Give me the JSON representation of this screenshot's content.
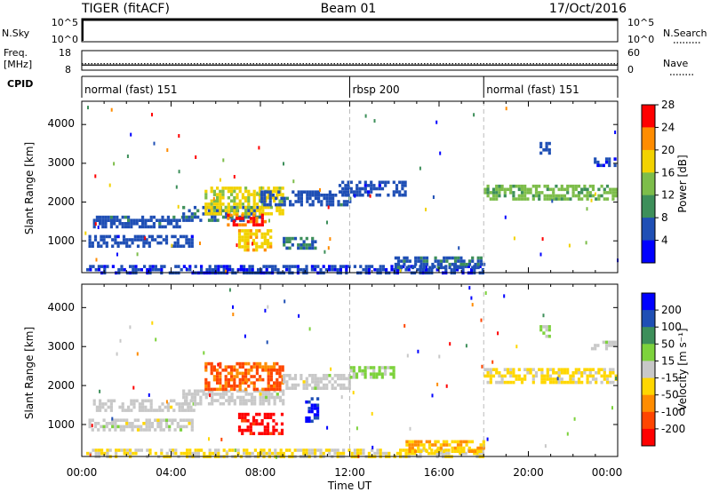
{
  "header": {
    "radar": "TIGER (fitACF)",
    "beam": "Beam 01",
    "date": "17/Oct/2016"
  },
  "nsky_panel": {
    "left_label": "N.Sky",
    "right_label": "N.Search",
    "left_ticks": [
      "10^5",
      "10^0"
    ],
    "right_ticks": [
      "10^5",
      "10^0"
    ]
  },
  "freq_panel": {
    "left_label_1": "Freq.",
    "left_label_2": "[MHz]",
    "right_label": "Nave",
    "left_ticks": [
      "18",
      "8"
    ],
    "right_ticks": [
      "60",
      "0"
    ],
    "freq_level": 10.6,
    "nave_level": 20
  },
  "cpid": {
    "label": "CPID",
    "segments": [
      {
        "start_h": 0,
        "end_h": 12,
        "label": "normal (fast) 151"
      },
      {
        "start_h": 12,
        "end_h": 18,
        "label": "rbsp 200"
      },
      {
        "start_h": 18,
        "end_h": 24,
        "label": "normal (fast) 151"
      }
    ]
  },
  "axes": {
    "ylabel": "Slant Range [km]",
    "xlabel": "Time UT",
    "y_ticks": [
      "1000",
      "2000",
      "3000",
      "4000"
    ],
    "x_ticks": [
      "00:00",
      "04:00",
      "08:00",
      "12:00",
      "16:00",
      "20:00",
      "00:00"
    ]
  },
  "colorbars": {
    "power": {
      "label": "Power [dB]",
      "ticks": [
        "4",
        "8",
        "12",
        "16",
        "20",
        "24",
        "28"
      ],
      "colors": [
        "#0000ff",
        "#1f4fb5",
        "#3d8f5a",
        "#7dbd4a",
        "#f2d200",
        "#ff8c00",
        "#ff0000"
      ]
    },
    "velocity": {
      "label": "Velocity [m s⁻¹]",
      "ticks": [
        "200",
        "100",
        "50",
        "15",
        "-15",
        "-50",
        "-100",
        "-200"
      ],
      "colors": [
        "#0000ff",
        "#1f4fb5",
        "#3d8f5a",
        "#7dd23c",
        "#c8c8c8",
        "#ffd700",
        "#ff8c00",
        "#ff4500",
        "#ff0000"
      ]
    }
  },
  "chart_data": [
    {
      "type": "heatmap",
      "title": "Power",
      "xlabel": "Time UT",
      "ylabel": "Slant Range [km]",
      "xlim": [
        0,
        24
      ],
      "ylim": [
        180,
        4600
      ],
      "value_label": "Power [dB]",
      "vlim": [
        0,
        30
      ],
      "regions": [
        {
          "t0": 0.2,
          "t1": 18.0,
          "r0": 200,
          "r1": 380,
          "v": 5
        },
        {
          "t0": 0.3,
          "t1": 5.0,
          "r0": 900,
          "r1": 1150,
          "v": 6
        },
        {
          "t0": 0.5,
          "t1": 4.5,
          "r0": 1350,
          "r1": 1650,
          "v": 7
        },
        {
          "t0": 4.5,
          "t1": 8.0,
          "r0": 1550,
          "r1": 1900,
          "v": 8
        },
        {
          "t0": 5.5,
          "t1": 9.0,
          "r0": 1700,
          "r1": 2400,
          "v": 18
        },
        {
          "t0": 6.5,
          "t1": 8.2,
          "r0": 1450,
          "r1": 1700,
          "v": 26
        },
        {
          "t0": 7.0,
          "t1": 8.5,
          "r0": 800,
          "r1": 1300,
          "v": 20
        },
        {
          "t0": 8.0,
          "t1": 12.0,
          "r0": 1900,
          "r1": 2300,
          "v": 7
        },
        {
          "t0": 9.0,
          "t1": 10.5,
          "r0": 800,
          "r1": 1100,
          "v": 9
        },
        {
          "t0": 11.5,
          "t1": 14.5,
          "r0": 2200,
          "r1": 2550,
          "v": 6
        },
        {
          "t0": 14.0,
          "t1": 18.0,
          "r0": 300,
          "r1": 600,
          "v": 8
        },
        {
          "t0": 18.0,
          "t1": 23.9,
          "r0": 2050,
          "r1": 2450,
          "v": 14
        },
        {
          "t0": 20.5,
          "t1": 21.0,
          "r0": 3250,
          "r1": 3550,
          "v": 6
        },
        {
          "t0": 22.8,
          "t1": 23.9,
          "r0": 2950,
          "r1": 3150,
          "v": 5
        }
      ]
    },
    {
      "type": "heatmap",
      "title": "Velocity",
      "xlabel": "Time UT",
      "ylabel": "Slant Range [km]",
      "xlim": [
        0,
        24
      ],
      "ylim": [
        180,
        4600
      ],
      "value_label": "Velocity [m s⁻¹]",
      "vlim": [
        -250,
        250
      ],
      "regions": [
        {
          "t0": 0.2,
          "t1": 18.0,
          "r0": 200,
          "r1": 380,
          "v": -30
        },
        {
          "t0": 0.3,
          "t1": 5.0,
          "r0": 900,
          "r1": 1150,
          "v": 0
        },
        {
          "t0": 0.5,
          "t1": 5.0,
          "r0": 1350,
          "r1": 1650,
          "v": 0
        },
        {
          "t0": 4.5,
          "t1": 9.0,
          "r0": 1550,
          "r1": 1900,
          "v": 0
        },
        {
          "t0": 5.5,
          "t1": 9.0,
          "r0": 1900,
          "r1": 2600,
          "v": -150
        },
        {
          "t0": 7.0,
          "t1": 9.0,
          "r0": 800,
          "r1": 1300,
          "v": -220
        },
        {
          "t0": 9.0,
          "t1": 12.0,
          "r0": 1900,
          "r1": 2300,
          "v": 0
        },
        {
          "t0": 10.0,
          "t1": 10.6,
          "r0": 1100,
          "r1": 1700,
          "v": 200
        },
        {
          "t0": 12.0,
          "t1": 14.0,
          "r0": 2200,
          "r1": 2500,
          "v": 40
        },
        {
          "t0": 14.5,
          "t1": 18.0,
          "r0": 300,
          "r1": 600,
          "v": -80
        },
        {
          "t0": 18.0,
          "t1": 23.9,
          "r0": 2050,
          "r1": 2450,
          "v": -40
        },
        {
          "t0": 20.5,
          "t1": 21.0,
          "r0": 3250,
          "r1": 3550,
          "v": 40
        },
        {
          "t0": 22.8,
          "t1": 23.9,
          "r0": 2950,
          "r1": 3150,
          "v": 0
        }
      ]
    }
  ]
}
